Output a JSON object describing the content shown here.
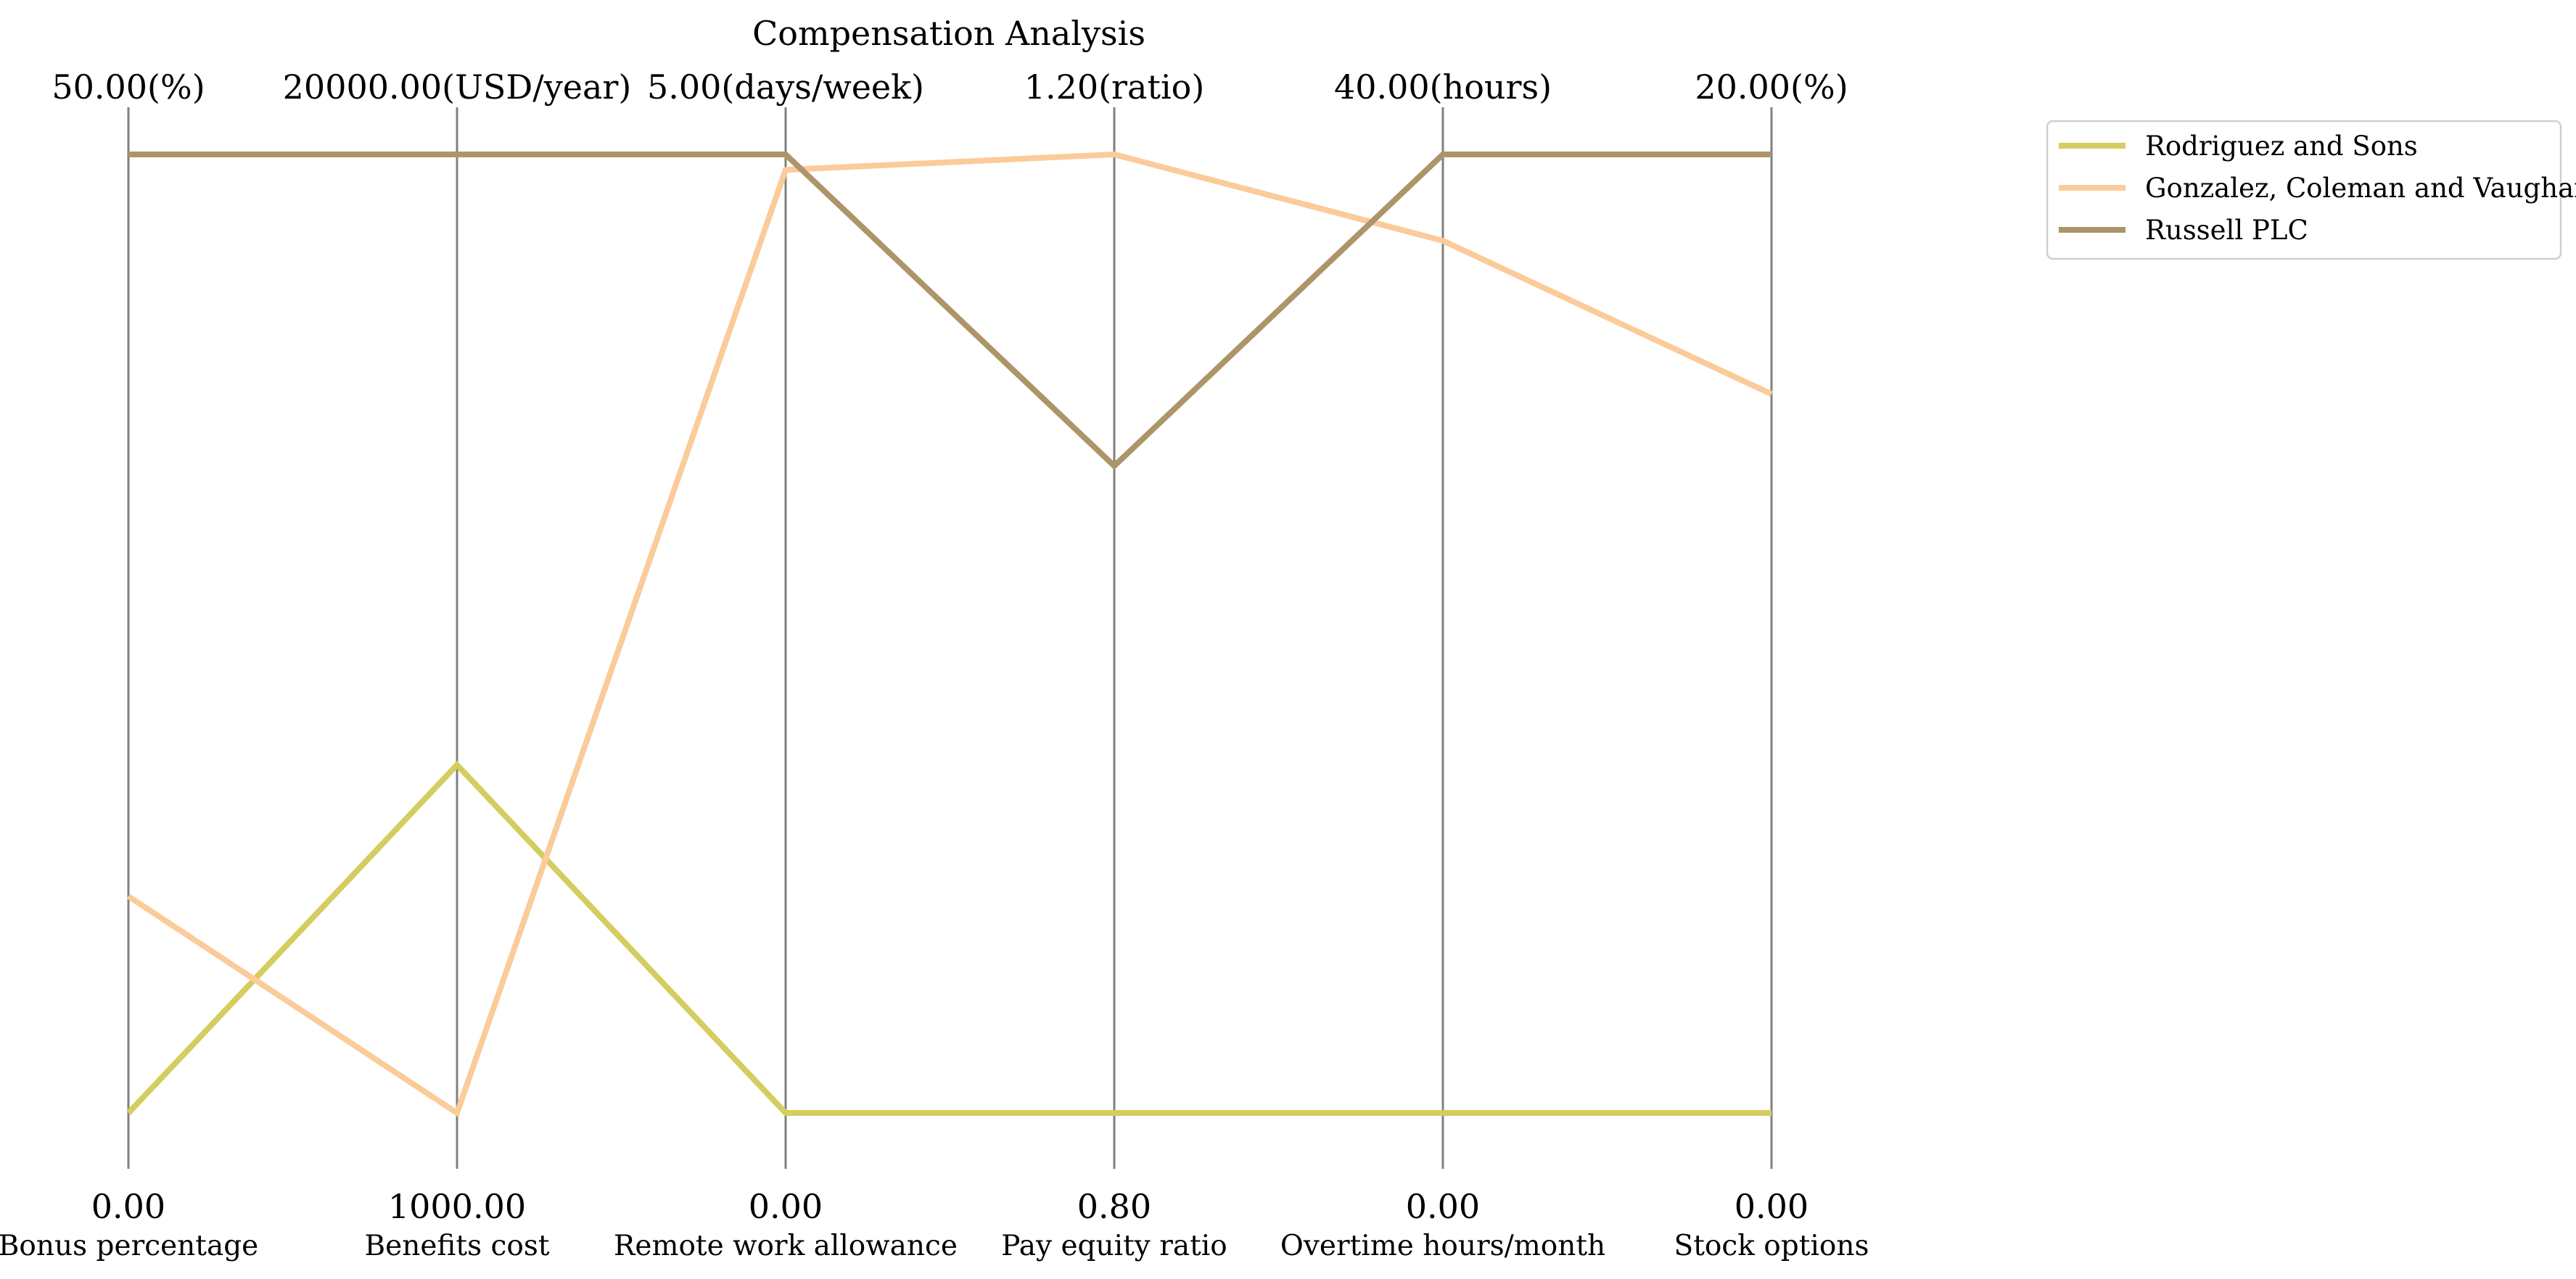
{
  "chart_data": {
    "type": "line",
    "title": "Compensation Analysis",
    "axes": [
      {
        "name": "Bonus percentage",
        "min": 0,
        "max": 50,
        "min_label": "0.00",
        "max_label": "50.00(%)"
      },
      {
        "name": "Benefits cost",
        "min": 1000,
        "max": 20000,
        "min_label": "1000.00",
        "max_label": "20000.00(USD/year)"
      },
      {
        "name": "Remote work allowance",
        "min": 0,
        "max": 5,
        "min_label": "0.00",
        "max_label": "5.00(days/week)"
      },
      {
        "name": "Pay equity ratio",
        "min": 0.8,
        "max": 1.2,
        "min_label": "0.80",
        "max_label": "1.20(ratio)"
      },
      {
        "name": "Overtime hours/month",
        "min": 0,
        "max": 40,
        "min_label": "0.00",
        "max_label": "40.00(hours)"
      },
      {
        "name": "Stock options",
        "min": 0,
        "max": 20,
        "min_label": "0.00",
        "max_label": "20.00(%)"
      }
    ],
    "series": [
      {
        "name": "Rodriguez and Sons",
        "color": "#d4cd5f",
        "values": [
          0,
          7900,
          0,
          0.8,
          0,
          0
        ]
      },
      {
        "name": "Gonzalez, Coleman and Vaughan",
        "color": "#fbcb9a",
        "values": [
          11.3,
          1000,
          4.92,
          1.2,
          36.4,
          15
        ]
      },
      {
        "name": "Russell PLC",
        "color": "#ad9569",
        "values": [
          50,
          20000,
          5,
          1.07,
          40,
          20
        ]
      }
    ],
    "legend_position": "top-right",
    "grid": false
  }
}
